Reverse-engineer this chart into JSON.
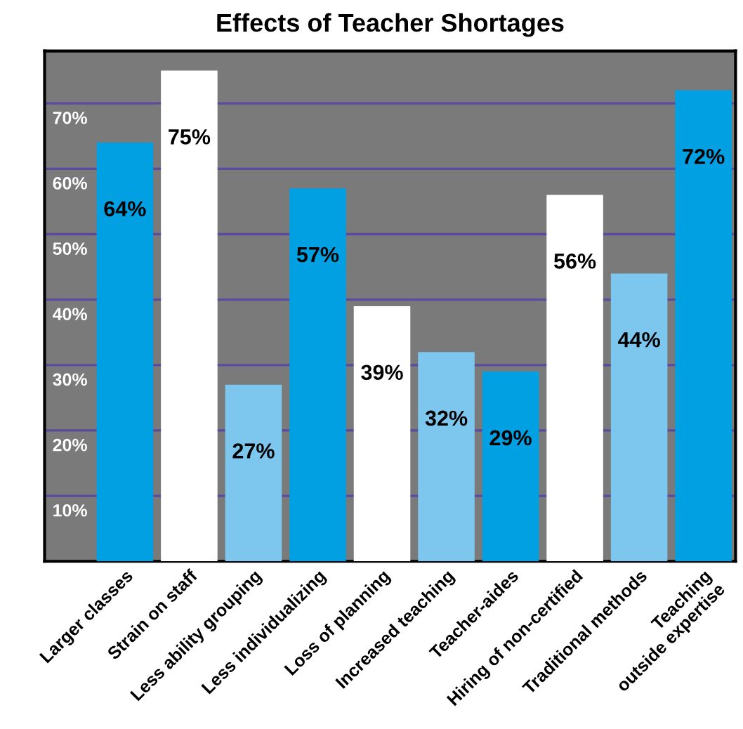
{
  "chart_data": {
    "type": "bar",
    "title": "Effects of Teacher Shortages",
    "categories": [
      "Larger classes",
      "Strain on staff",
      "Less ability grouping",
      "Less individualizing",
      "Loss of planning",
      "Increased teaching",
      "Teacher-aides",
      "Hiring of non-certified",
      "Traditional methods",
      "Teaching\noutside expertise"
    ],
    "values": [
      64,
      75,
      27,
      57,
      39,
      32,
      29,
      56,
      44,
      72
    ],
    "colors": [
      "#00a0e3",
      "#ffffff",
      "#7dc6ee",
      "#00a0e3",
      "#ffffff",
      "#7dc6ee",
      "#00a0e3",
      "#ffffff",
      "#7dc6ee",
      "#00a0e3"
    ],
    "value_labels": [
      "64%",
      "75%",
      "27%",
      "57%",
      "39%",
      "32%",
      "29%",
      "56%",
      "44%",
      "72%"
    ],
    "ylim": [
      0,
      78
    ],
    "yticks": [
      {
        "value": 10,
        "label": "10%"
      },
      {
        "value": 20,
        "label": "20%"
      },
      {
        "value": 30,
        "label": "30%"
      },
      {
        "value": 40,
        "label": "40%"
      },
      {
        "value": 50,
        "label": "50%"
      },
      {
        "value": 60,
        "label": "60%"
      },
      {
        "value": 70,
        "label": "70%"
      }
    ],
    "grid": "y",
    "legend": false
  }
}
